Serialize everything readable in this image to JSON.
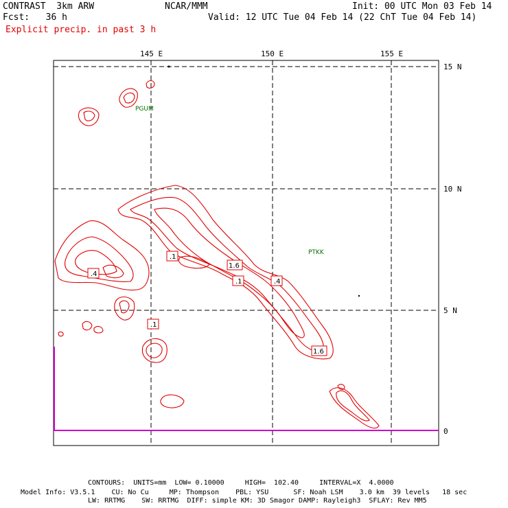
{
  "header": {
    "model": "CONTRAST  3km ARW",
    "fcst": "Fcst:   36 h",
    "org": "NCAR/MMM",
    "init": "Init: 00 UTC Mon 03 Feb 14",
    "valid": "Valid: 12 UTC Tue 04 Feb 14 (22 ChT Tue 04 Feb 14)",
    "field": "Explicit precip. in past 3 h"
  },
  "axes": {
    "lon_labels": [
      "145 E",
      "150 E",
      "155 E"
    ],
    "lat_labels": [
      "15 N",
      "10 N",
      "5 N",
      "0"
    ]
  },
  "stations": [
    "PGUM",
    "PTKK"
  ],
  "contour_labels": [
    ".1",
    "1.6",
    ".1",
    ".4",
    ".4",
    ".1",
    "1.6"
  ],
  "footer": {
    "contours": "CONTOURS:  UNITS=mm  LOW= 0.10000     HIGH=  102.40     INTERVAL=X  4.0000",
    "model_info_1": "Model Info: V3.5.1    CU: No Cu     MP: Thompson    PBL: YSU      SF: Noah LSM    3.0 km  39 levels   18 sec",
    "model_info_2": "LW: RRTMG    SW: RRTMG  DIFF: simple KM: 3D Smagor DAMP: Rayleigh3  SFLAY: Rev MM5"
  },
  "colors": {
    "contour": "#e00000",
    "grid": "#000000",
    "station": "#007000",
    "boundary": "#cc00cc"
  }
}
